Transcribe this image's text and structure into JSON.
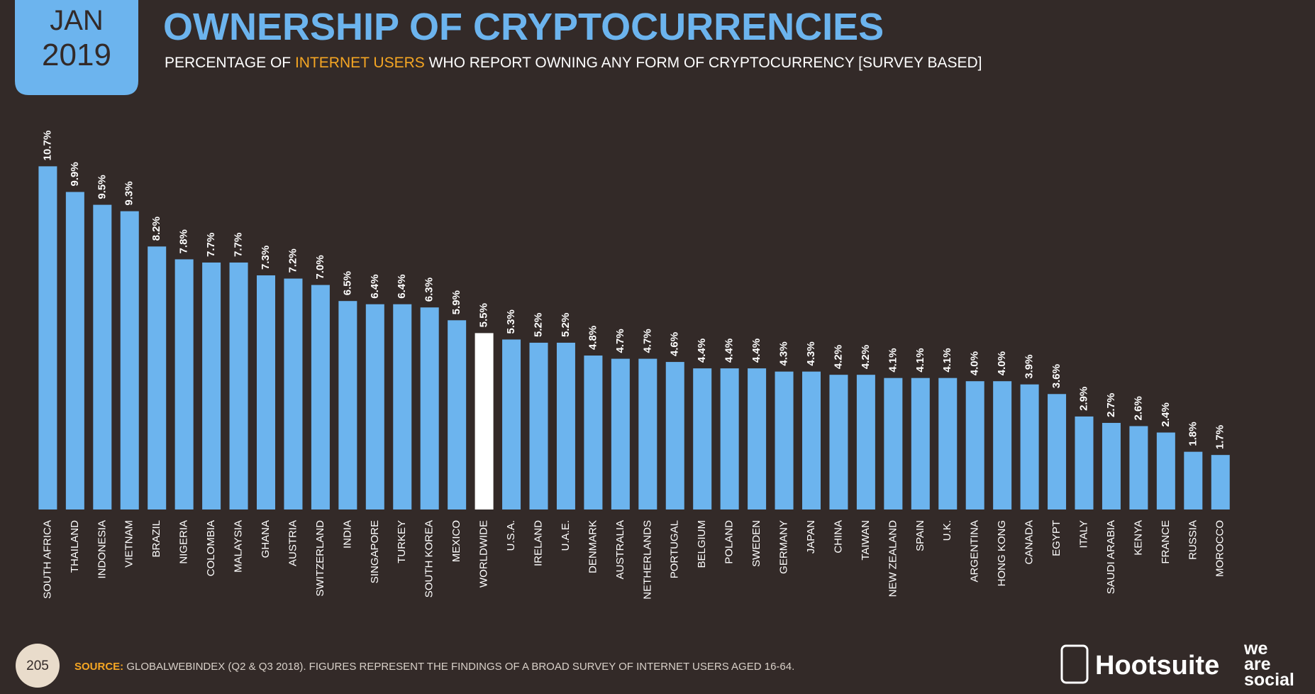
{
  "header": {
    "badge_month": "JAN",
    "badge_year": "2019",
    "subtitle_before": "PERCENTAGE OF ",
    "subtitle_highlight": "INTERNET USERS",
    "subtitle_after": " WHO REPORT OWNING ANY FORM OF CRYPTOCURRENCY [SURVEY BASED]"
  },
  "chart_data": {
    "type": "bar",
    "title": "OWNERSHIP OF CRYPTOCURRENCIES",
    "categories": [
      "SOUTH AFRICA",
      "THAILAND",
      "INDONESIA",
      "VIETNAM",
      "BRAZIL",
      "NIGERIA",
      "COLOMBIA",
      "MALAYSIA",
      "GHANA",
      "AUSTRIA",
      "SWITZERLAND",
      "INDIA",
      "SINGAPORE",
      "TURKEY",
      "SOUTH KOREA",
      "MEXICO",
      "WORLDWIDE",
      "U.S.A.",
      "IRELAND",
      "U.A.E.",
      "DENMARK",
      "AUSTRALIA",
      "NETHERLANDS",
      "PORTUGAL",
      "BELGIUM",
      "POLAND",
      "SWEDEN",
      "GERMANY",
      "JAPAN",
      "CHINA",
      "TAIWAN",
      "NEW ZEALAND",
      "SPAIN",
      "U.K.",
      "ARGENTINA",
      "HONG KONG",
      "CANADA",
      "EGYPT",
      "ITALY",
      "SAUDI ARABIA",
      "KENYA",
      "FRANCE",
      "RUSSIA",
      "MOROCCO"
    ],
    "values": [
      10.7,
      9.9,
      9.5,
      9.3,
      8.2,
      7.8,
      7.7,
      7.7,
      7.3,
      7.2,
      7.0,
      6.5,
      6.4,
      6.4,
      6.3,
      5.9,
      5.5,
      5.3,
      5.2,
      5.2,
      4.8,
      4.7,
      4.7,
      4.6,
      4.4,
      4.4,
      4.4,
      4.3,
      4.3,
      4.2,
      4.2,
      4.1,
      4.1,
      4.1,
      4.0,
      4.0,
      3.9,
      3.6,
      2.9,
      2.7,
      2.6,
      2.4,
      1.8,
      1.7
    ],
    "value_labels": [
      "10.7%",
      "9.9%",
      "9.5%",
      "9.3%",
      "8.2%",
      "7.8%",
      "7.7%",
      "7.7%",
      "7.3%",
      "7.2%",
      "7.0%",
      "6.5%",
      "6.4%",
      "6.4%",
      "6.3%",
      "5.9%",
      "5.5%",
      "5.3%",
      "5.2%",
      "5.2%",
      "4.8%",
      "4.7%",
      "4.7%",
      "4.6%",
      "4.4%",
      "4.4%",
      "4.4%",
      "4.3%",
      "4.3%",
      "4.2%",
      "4.2%",
      "4.1%",
      "4.1%",
      "4.1%",
      "4.0%",
      "4.0%",
      "3.9%",
      "3.6%",
      "2.9%",
      "2.7%",
      "2.6%",
      "2.4%",
      "1.8%",
      "1.7%"
    ],
    "colors": [
      "#6cb4ee",
      "#6cb4ee",
      "#6cb4ee",
      "#6cb4ee",
      "#6cb4ee",
      "#6cb4ee",
      "#6cb4ee",
      "#6cb4ee",
      "#6cb4ee",
      "#6cb4ee",
      "#6cb4ee",
      "#6cb4ee",
      "#6cb4ee",
      "#6cb4ee",
      "#6cb4ee",
      "#6cb4ee",
      "#ffffff",
      "#6cb4ee",
      "#6cb4ee",
      "#6cb4ee",
      "#6cb4ee",
      "#6cb4ee",
      "#6cb4ee",
      "#6cb4ee",
      "#6cb4ee",
      "#6cb4ee",
      "#6cb4ee",
      "#6cb4ee",
      "#6cb4ee",
      "#6cb4ee",
      "#6cb4ee",
      "#6cb4ee",
      "#6cb4ee",
      "#6cb4ee",
      "#6cb4ee",
      "#6cb4ee",
      "#6cb4ee",
      "#6cb4ee",
      "#6cb4ee",
      "#6cb4ee",
      "#6cb4ee",
      "#6cb4ee",
      "#6cb4ee",
      "#6cb4ee"
    ]
  },
  "footer": {
    "page": "205",
    "source_label": "SOURCE:",
    "source_text": " GLOBALWEBINDEX (Q2 & Q3 2018). FIGURES REPRESENT THE FINDINGS OF A BROAD SURVEY OF INTERNET USERS AGED 16-64.",
    "logo1": "Hootsuite",
    "logo2_a": "we",
    "logo2_b": "are",
    "logo2_c": "social"
  }
}
